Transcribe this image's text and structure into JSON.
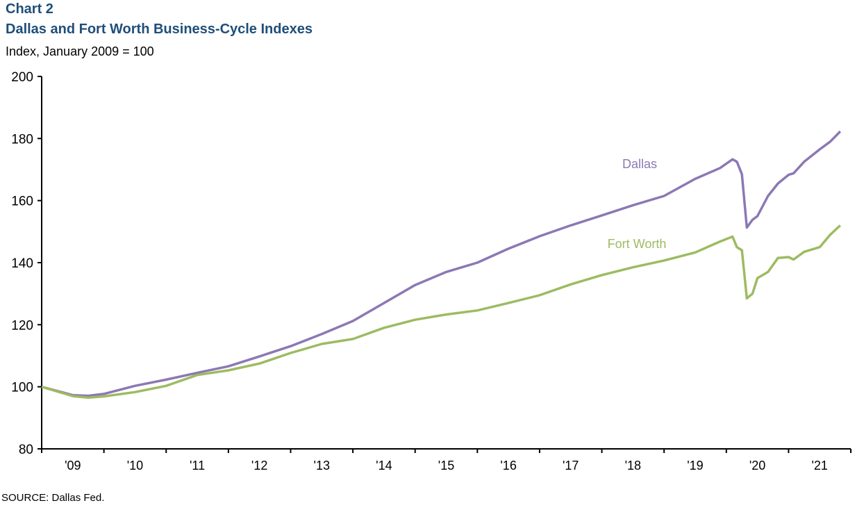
{
  "chart_data": {
    "type": "line",
    "label": "Chart 2",
    "title": "Dallas and Fort Worth Business-Cycle Indexes",
    "subtitle": "Index, January 2009 = 100",
    "xlabel": "",
    "ylabel": "Index, January 2009 = 100",
    "ylim": [
      80,
      200
    ],
    "xlim": [
      2009,
      2022
    ],
    "yticks": [
      "80",
      "100",
      "120",
      "140",
      "160",
      "180",
      "200"
    ],
    "xtick_labels": [
      "'09",
      "'10",
      "'11",
      "'12",
      "'13",
      "'14",
      "'15",
      "'16",
      "'17",
      "'18",
      "'19",
      "'20",
      "'21"
    ],
    "grid": false,
    "x": [
      2009.0,
      2009.5,
      2009.75,
      2010.0,
      2010.5,
      2011.0,
      2011.5,
      2012.0,
      2012.5,
      2013.0,
      2013.5,
      2014.0,
      2014.5,
      2015.0,
      2015.5,
      2016.0,
      2016.5,
      2017.0,
      2017.5,
      2018.0,
      2018.5,
      2019.0,
      2019.5,
      2019.9,
      2020.1,
      2020.17,
      2020.25,
      2020.33,
      2020.42,
      2020.5,
      2020.67,
      2020.83,
      2021.0,
      2021.08,
      2021.25,
      2021.5,
      2021.67,
      2021.83
    ],
    "series": [
      {
        "name": "Dallas",
        "color": "#8c78b4",
        "values": [
          100,
          97.3,
          97.1,
          97.7,
          100.3,
          102.3,
          104.5,
          106.6,
          109.8,
          113.1,
          117,
          121.2,
          127,
          132.8,
          137,
          140,
          144.5,
          148.5,
          152,
          155.2,
          158.5,
          161.5,
          167,
          170.5,
          173.3,
          172.5,
          168.5,
          151.3,
          153.8,
          155,
          161.5,
          165.5,
          168.3,
          168.8,
          172.5,
          176.5,
          179,
          182.3
        ]
      },
      {
        "name": "Fort Worth",
        "color": "#9dbb61",
        "values": [
          100,
          97,
          96.5,
          96.9,
          98.3,
          100.3,
          103.8,
          105.3,
          107.5,
          110.9,
          113.8,
          115.4,
          119,
          121.6,
          123.3,
          124.6,
          127,
          129.5,
          133,
          136,
          138.5,
          140.7,
          143.3,
          146.8,
          148.4,
          145,
          144,
          128.5,
          130,
          135,
          137,
          141.5,
          141.8,
          141,
          143.5,
          145,
          149,
          152
        ]
      }
    ],
    "annotations": [
      "Dallas",
      "Fort Worth"
    ],
    "source": "SOURCE:  Dallas Fed."
  }
}
